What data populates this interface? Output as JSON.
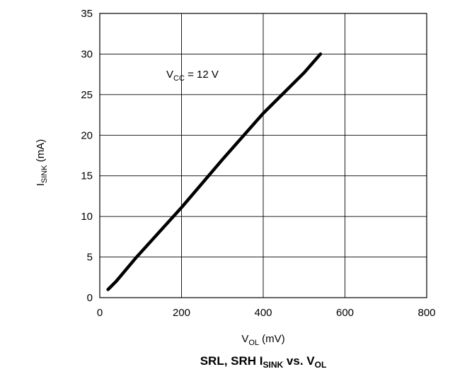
{
  "chart_data": {
    "type": "line",
    "title": {
      "pre": "SRL, SRH I",
      "sub": "SINK",
      "mid": " vs. V",
      "sub2": "OL"
    },
    "xlabel": {
      "main": "V",
      "sub": "OL",
      "rest": " (mV)"
    },
    "ylabel": {
      "main": "I",
      "sub": "SINK",
      "rest": " (mA)"
    },
    "annotation": {
      "main": "V",
      "sub": "CC",
      "rest": " = 12 V"
    },
    "xlim": [
      0,
      800
    ],
    "ylim": [
      0,
      35
    ],
    "x_ticks": [
      "0",
      "200",
      "400",
      "600",
      "800"
    ],
    "y_ticks": [
      "0",
      "5",
      "10",
      "15",
      "20",
      "25",
      "30",
      "35"
    ],
    "grid": true,
    "series": [
      {
        "x": [
          20,
          40,
          90,
          200,
          300,
          400,
          500,
          540
        ],
        "y": [
          1,
          2,
          5,
          11.1,
          17,
          22.7,
          27.7,
          30
        ]
      }
    ],
    "line_color": "#000000"
  }
}
